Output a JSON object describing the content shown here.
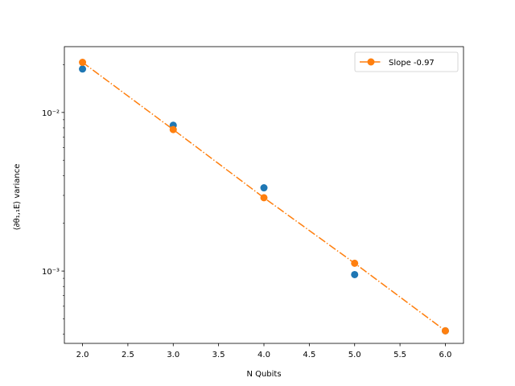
{
  "chart_data": {
    "type": "scatter",
    "xlabel": "N Qubits",
    "ylabel": "⟨∂θ₁,₁E⟩ variance",
    "xlim": [
      1.8,
      6.2
    ],
    "ylim": [
      0.00035,
      0.026
    ],
    "yscale": "log",
    "grid": false,
    "legend_position": "top-right",
    "x_ticks": [
      2.0,
      2.5,
      3.0,
      3.5,
      4.0,
      4.5,
      5.0,
      5.5,
      6.0
    ],
    "x_tick_labels": [
      "2.0",
      "2.5",
      "3.0",
      "3.5",
      "4.0",
      "4.5",
      "5.0",
      "5.5",
      "6.0"
    ],
    "y_ticks": [
      0.001,
      0.01
    ],
    "y_tick_labels": [
      "10⁻³",
      "10⁻²"
    ],
    "series": [
      {
        "role": "data",
        "style": "markers",
        "color": "#1f77b4",
        "x": [
          2,
          3,
          4,
          5,
          6
        ],
        "y": [
          0.0188,
          0.0083,
          0.00335,
          0.00095,
          0.00042
        ]
      },
      {
        "name": "Slope -0.97",
        "role": "fit",
        "style": "dashdot-markers",
        "color": "#ff7f0e",
        "x": [
          2,
          3,
          4,
          5,
          6
        ],
        "y": [
          0.0207,
          0.0078,
          0.0029,
          0.00112,
          0.00042
        ]
      }
    ]
  }
}
